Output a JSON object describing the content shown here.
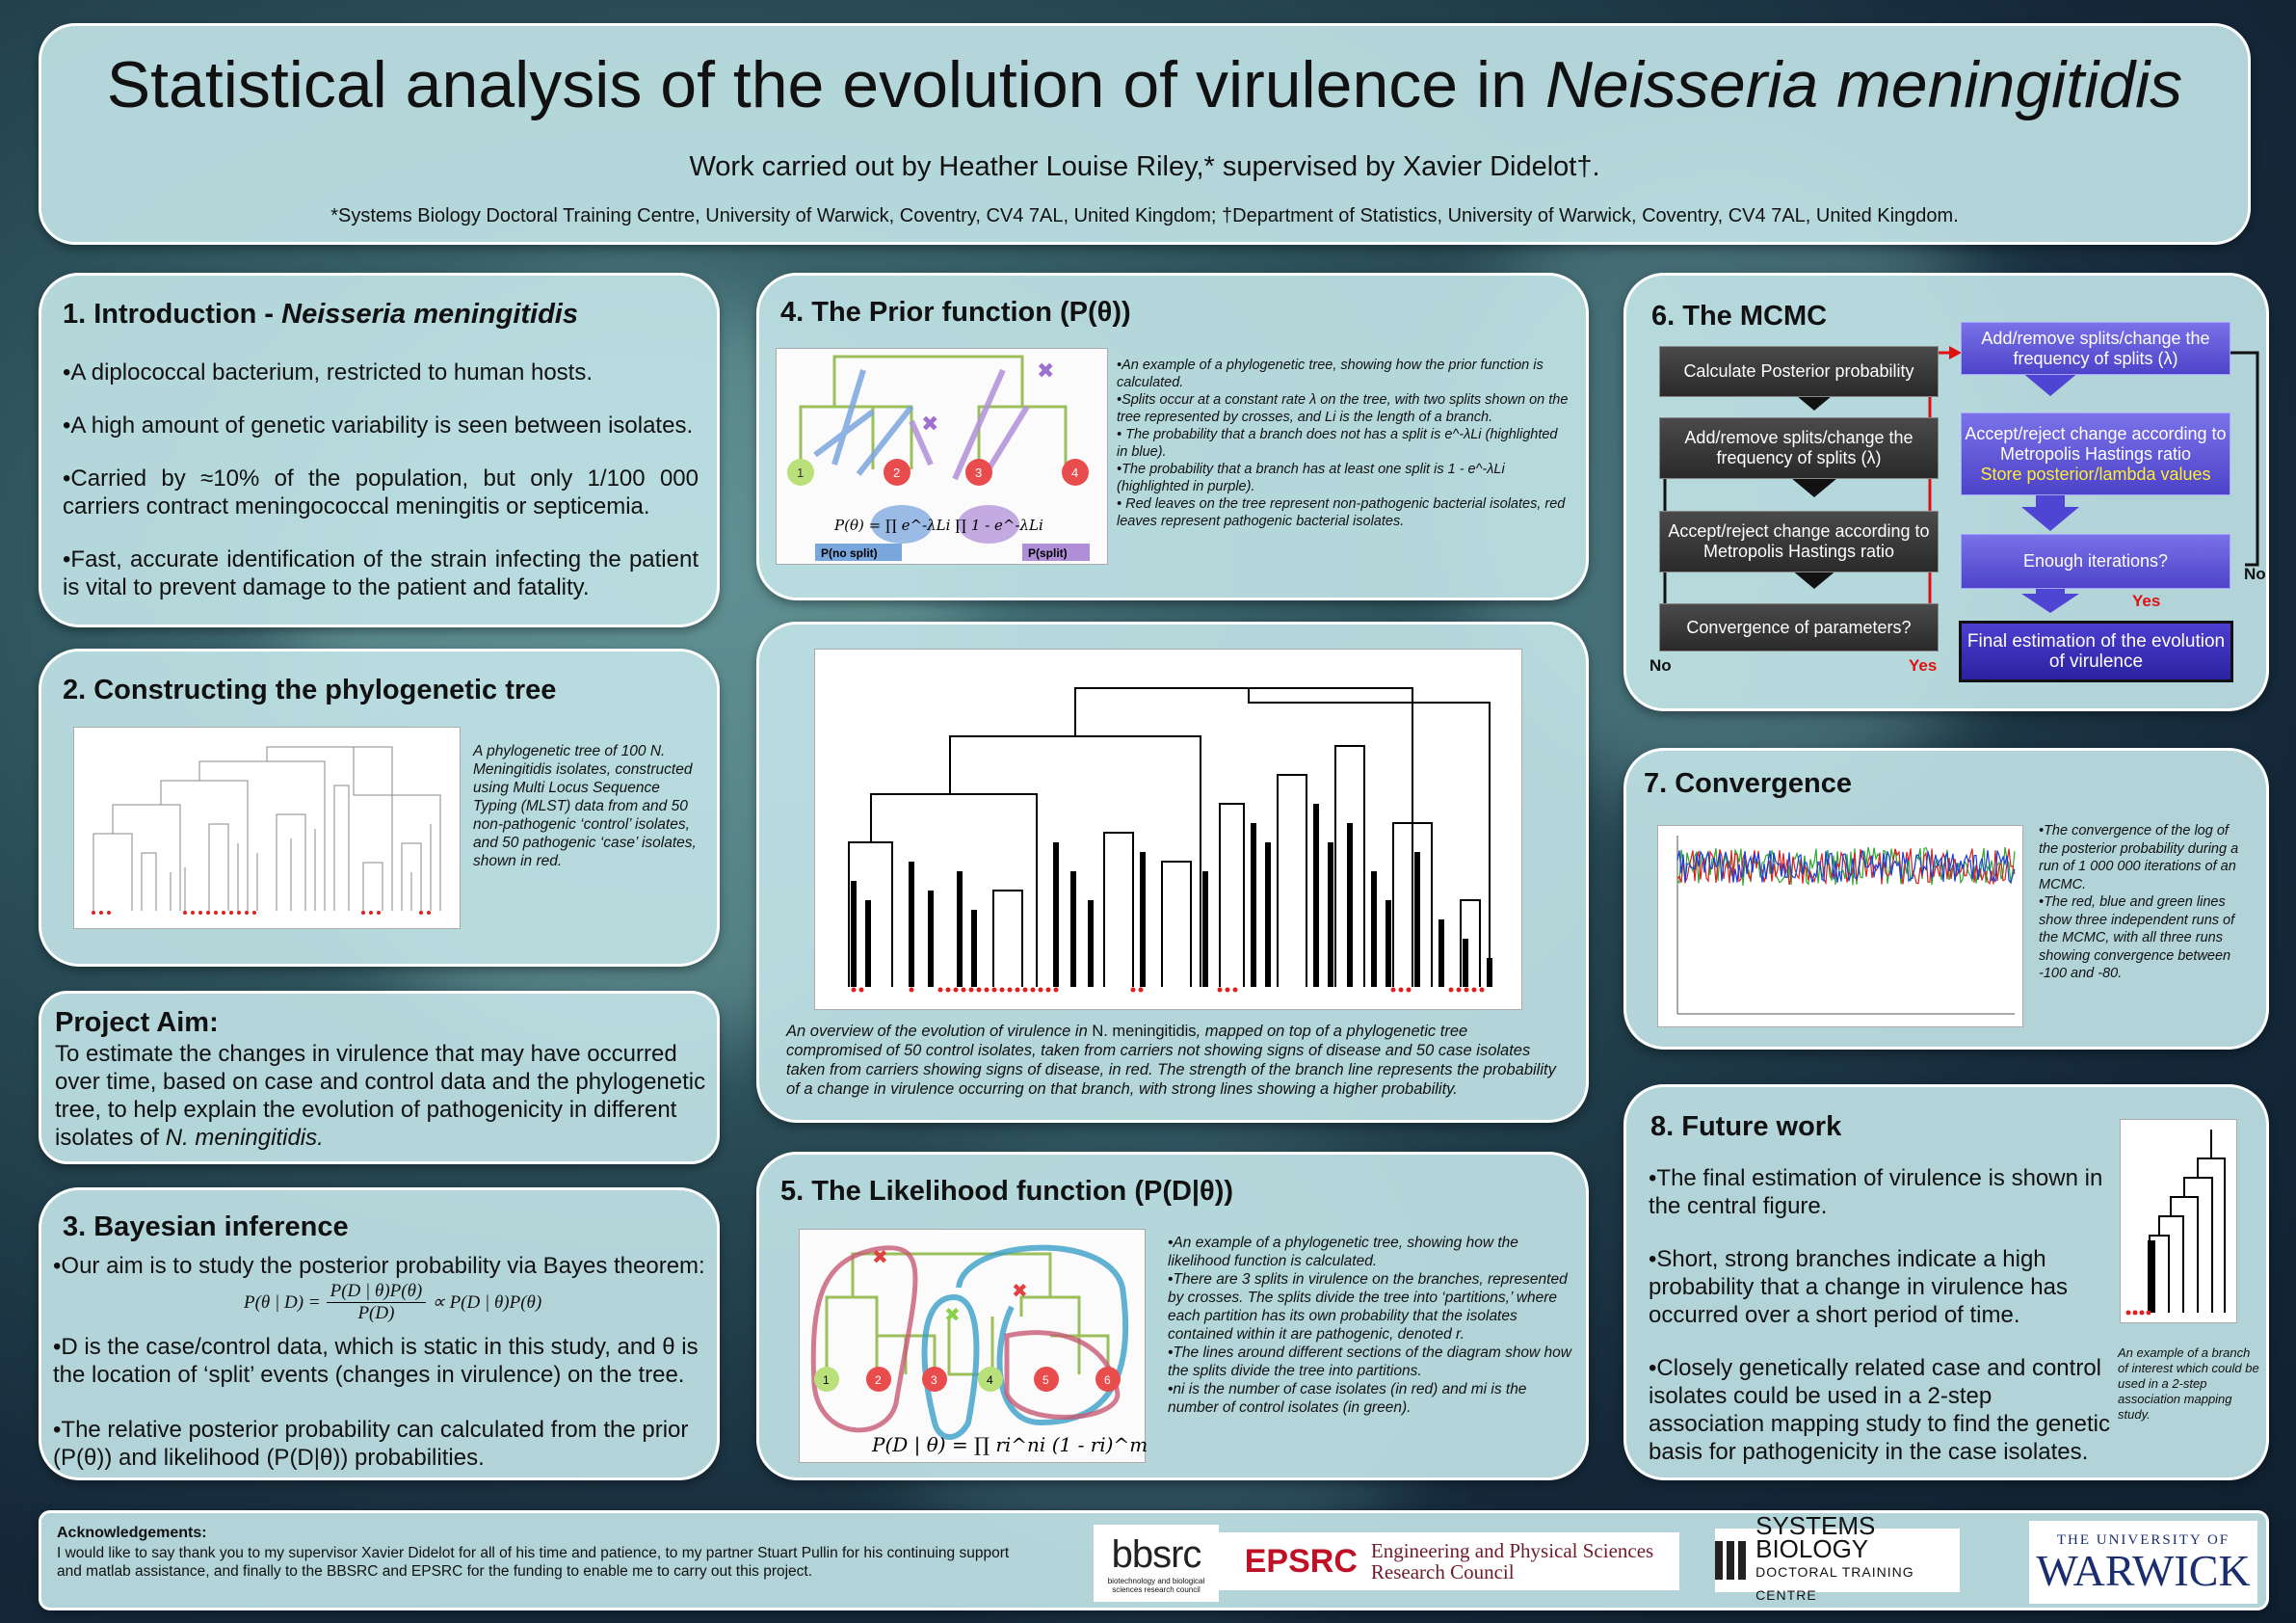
{
  "header": {
    "title_prefix": "Statistical analysis of the evolution of virulence in ",
    "title_italic": "Neisseria meningitidis",
    "authors": "Work carried out by Heather Louise Riley,* supervised by Xavier Didelot†.",
    "affiliations": "*Systems Biology Doctoral Training Centre, University of Warwick, Coventry, CV4 7AL, United Kingdom; †Department of Statistics, University of Warwick, Coventry, CV4 7AL, United Kingdom."
  },
  "intro": {
    "title_prefix": "1. Introduction - ",
    "title_italic": "Neisseria meningitidis",
    "bullets": [
      "•A diplococcal bacterium, restricted to human hosts.",
      "•A high amount of genetic variability is seen between isolates.",
      "•Carried by ≈10% of the population, but only 1/100 000 carriers contract meningococcal meningitis or septicemia.",
      "•Fast, accurate identification of the strain infecting the patient is vital to prevent damage to the patient and fatality."
    ]
  },
  "constructing": {
    "title": "2. Constructing the phylogenetic tree",
    "caption": "A phylogenetic tree of 100 N. Meningitidis isolates, constructed using Multi Locus Sequence Typing (MLST) data from and 50 non-pathogenic ‘control’ isolates, and 50 pathogenic ‘case’ isolates, shown in red."
  },
  "aim": {
    "title": "Project Aim:",
    "text_prefix": "To estimate the changes in virulence that may have occurred over time, based on case and control data and the phylogenetic tree, to help explain the evolution of pathogenicity in different isolates of ",
    "text_italic": "N. meningitidis."
  },
  "bayes": {
    "title": "3. Bayesian inference",
    "line1": "•Our aim is to study the posterior probability via Bayes theorem:",
    "formula_left": "P(θ | D) =",
    "formula_num": "P(D | θ)P(θ)",
    "formula_den": "P(D)",
    "formula_right": "∝ P(D | θ)P(θ)",
    "line2": "•D is the case/control data, which is static in this study, and θ is the location of ‘split’ events (changes in virulence) on the tree.",
    "line3": "•The relative posterior probability can calculated from the prior (P(θ)) and likelihood (P(D|θ)) probabilities."
  },
  "prior": {
    "title": "4. The Prior function (P(θ))",
    "caption": [
      "•An example of a phylogenetic tree, showing how the prior function is calculated.",
      "•Splits occur at a constant rate λ on the tree, with two splits shown on the tree represented by crosses, and Li is the length of a branch.",
      "• The probability that a branch does not has a split is e^-λLi (highlighted in blue).",
      "•The probability that a branch has at least one split is 1 - e^-λLi (highlighted in purple).",
      "• Red leaves on the tree represent non-pathogenic bacterial isolates, red leaves represent pathogenic bacterial isolates."
    ],
    "leaves": [
      "1",
      "2",
      "3",
      "4"
    ],
    "formula": "P(θ) = ∏ e^-λLi ∏ 1 - e^-λLi",
    "label_nosplit": "P(no split)",
    "label_split": "P(split)"
  },
  "overview": {
    "caption_a": "An overview of the evolution of virulence in ",
    "caption_italic": "N. meningitidis",
    "caption_b": ", mapped on top of a phylogenetic tree compromised of 50 control isolates, taken from carriers not showing signs of disease and 50 case isolates taken from carriers showing signs of disease, in red. The strength of the branch line represents the probability of a change in virulence occurring on that branch, with strong lines showing a higher probability."
  },
  "likelihood": {
    "title": "5. The Likelihood function (P(D|θ))",
    "caption": [
      "•An example of a phylogenetic tree, showing how the likelihood function is calculated.",
      "•There are 3 splits in virulence on the branches, represented by crosses. The splits divide the tree into ‘partitions,’ where each partition has its own probability that the isolates contained within it are pathogenic, denoted r.",
      "•The lines around different sections of the diagram show how the splits divide the tree into partitions.",
      "•ni is the number of case isolates (in red) and mi is the number of control isolates (in green)."
    ],
    "leaves": [
      "1",
      "2",
      "3",
      "4",
      "5",
      "6"
    ],
    "formula": "P(D | θ) = ∏ ri^ni (1 - ri)^mi"
  },
  "mcmc": {
    "title": "6. The MCMC",
    "left": [
      "Calculate Posterior probability",
      "Add/remove splits/change the frequency of splits (λ)",
      "Accept/reject change according to Metropolis Hastings ratio",
      "Convergence of parameters?"
    ],
    "right": [
      "Add/remove splits/change the frequency of splits (λ)",
      "Accept/reject change according to Metropolis Hastings ratio",
      "Enough iterations?",
      "Final estimation of the evolution of virulence"
    ],
    "store": "Store posterior/lambda values",
    "no_left": "No",
    "yes_left": "Yes",
    "no_right": "No",
    "yes_right": "Yes",
    "colors": {
      "arrow_red": "#e01010",
      "yes_text": "#e01010",
      "store_text": "#ffee33"
    }
  },
  "convergence": {
    "title": "7. Convergence",
    "caption": [
      "•The convergence of the log of the posterior probability during a run of 1 000 000 iterations of an MCMC.",
      "•The red, blue and green lines show three independent runs of the MCMC, with all three runs showing convergence between -100 and -80."
    ]
  },
  "future": {
    "title": "8. Future work",
    "bullets": [
      "•The final estimation of virulence is shown in the central figure.",
      "•Short, strong branches indicate a high probability that a change in virulence has occurred over a short period of time.",
      "•Closely genetically related case and control isolates could be used in a 2-step association mapping study to find the genetic basis for pathogenicity in the case isolates."
    ],
    "caption": "An example of a branch of interest which could be used in a 2-step association mapping study."
  },
  "footer": {
    "ack_title": "Acknowledgements",
    "ack_text": "I would like to say thank you to my supervisor Xavier Didelot for all of his time and patience, to my partner Stuart Pullin for his continuing support and matlab assistance, and finally to the BBSRC and EPSRC for the funding to enable me to carry out this project.",
    "bbsrc": "bbsrc",
    "bbsrc_sub": "biotechnology and biological sciences research council",
    "epsrc": "EPSRC",
    "epsrc_full1": "Engineering and Physical Sciences",
    "epsrc_full2": "Research Council",
    "sysbio1": "SYSTEMS BIOLOGY",
    "sysbio2": "DOCTORAL TRAINING CENTRE",
    "warwick1": "THE UNIVERSITY OF",
    "warwick2": "WARWICK"
  }
}
